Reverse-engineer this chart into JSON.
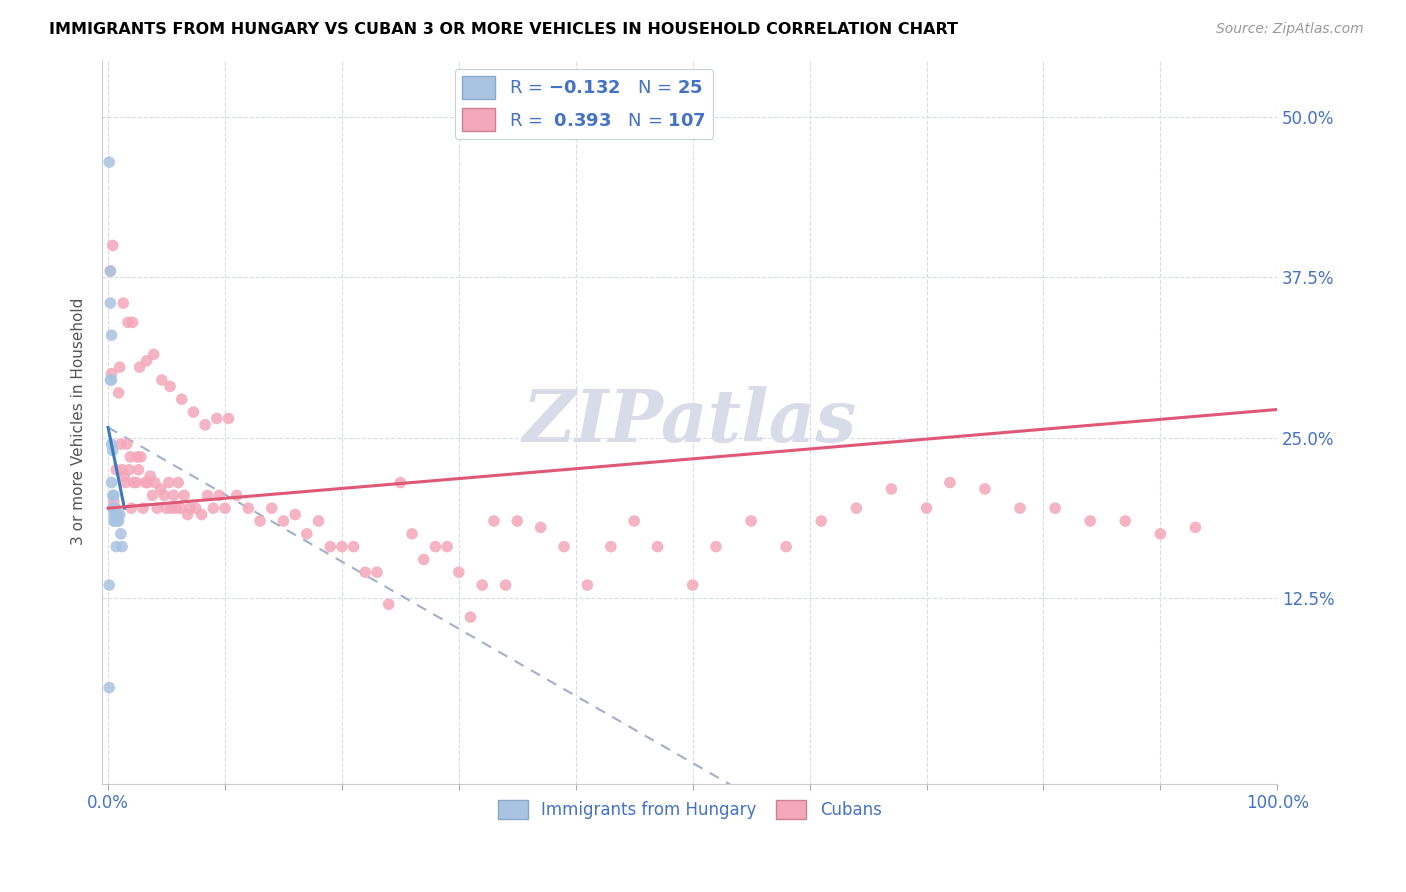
{
  "title": "IMMIGRANTS FROM HUNGARY VS CUBAN 3 OR MORE VEHICLES IN HOUSEHOLD CORRELATION CHART",
  "source": "Source: ZipAtlas.com",
  "ylabel": "3 or more Vehicles in Household",
  "ytick_labels": [
    "12.5%",
    "25.0%",
    "37.5%",
    "50.0%"
  ],
  "ytick_values": [
    0.125,
    0.25,
    0.375,
    0.5
  ],
  "xlim": [
    -0.005,
    1.0
  ],
  "ylim": [
    -0.02,
    0.545
  ],
  "plot_ylim": [
    0.0,
    0.545
  ],
  "hungary_R": -0.132,
  "hungary_N": 25,
  "cuban_R": 0.393,
  "cuban_N": 107,
  "hungary_color": "#a8c4e0",
  "cuban_color": "#f4a7b9",
  "hungary_line_color": "#3a7abf",
  "cuban_line_color": "#e05878",
  "dashed_line_color": "#a0b0cc",
  "watermark_color": "#d8dce8",
  "hungary_line_x0": 0.0,
  "hungary_line_y0": 0.258,
  "hungary_line_x1": 0.014,
  "hungary_line_y1": 0.195,
  "cuban_line_x0": 0.0,
  "cuban_line_y0": 0.195,
  "cuban_line_x1": 1.0,
  "cuban_line_y1": 0.272,
  "dash_line_x0": 0.0,
  "dash_line_y0": 0.258,
  "dash_line_x1": 0.55,
  "dash_line_y1": -0.03,
  "hungary_pts_x": [
    0.001,
    0.001,
    0.002,
    0.002,
    0.002,
    0.003,
    0.003,
    0.003,
    0.003,
    0.004,
    0.004,
    0.004,
    0.005,
    0.005,
    0.005,
    0.006,
    0.006,
    0.007,
    0.007,
    0.008,
    0.009,
    0.01,
    0.011,
    0.012,
    0.001
  ],
  "hungary_pts_y": [
    0.465,
    0.135,
    0.38,
    0.355,
    0.295,
    0.33,
    0.295,
    0.245,
    0.215,
    0.24,
    0.205,
    0.195,
    0.205,
    0.19,
    0.185,
    0.195,
    0.185,
    0.19,
    0.165,
    0.185,
    0.185,
    0.19,
    0.175,
    0.165,
    0.055
  ],
  "cuban_pts_x": [
    0.005,
    0.006,
    0.008,
    0.009,
    0.01,
    0.011,
    0.012,
    0.014,
    0.015,
    0.016,
    0.018,
    0.019,
    0.02,
    0.022,
    0.024,
    0.025,
    0.026,
    0.028,
    0.03,
    0.032,
    0.034,
    0.036,
    0.038,
    0.04,
    0.042,
    0.045,
    0.048,
    0.05,
    0.052,
    0.054,
    0.056,
    0.058,
    0.06,
    0.062,
    0.065,
    0.068,
    0.07,
    0.075,
    0.08,
    0.085,
    0.09,
    0.095,
    0.1,
    0.11,
    0.12,
    0.13,
    0.14,
    0.15,
    0.16,
    0.17,
    0.18,
    0.19,
    0.2,
    0.21,
    0.22,
    0.23,
    0.24,
    0.25,
    0.26,
    0.27,
    0.28,
    0.29,
    0.3,
    0.31,
    0.32,
    0.33,
    0.34,
    0.35,
    0.37,
    0.39,
    0.41,
    0.43,
    0.45,
    0.47,
    0.5,
    0.52,
    0.55,
    0.58,
    0.61,
    0.64,
    0.67,
    0.7,
    0.72,
    0.75,
    0.78,
    0.81,
    0.84,
    0.87,
    0.9,
    0.93,
    0.002,
    0.003,
    0.004,
    0.007,
    0.013,
    0.017,
    0.021,
    0.027,
    0.033,
    0.039,
    0.046,
    0.053,
    0.063,
    0.073,
    0.083,
    0.093,
    0.103
  ],
  "cuban_pts_y": [
    0.2,
    0.195,
    0.19,
    0.285,
    0.305,
    0.245,
    0.225,
    0.22,
    0.215,
    0.245,
    0.225,
    0.235,
    0.195,
    0.215,
    0.215,
    0.235,
    0.225,
    0.235,
    0.195,
    0.215,
    0.215,
    0.22,
    0.205,
    0.215,
    0.195,
    0.21,
    0.205,
    0.195,
    0.215,
    0.195,
    0.205,
    0.195,
    0.215,
    0.195,
    0.205,
    0.19,
    0.195,
    0.195,
    0.19,
    0.205,
    0.195,
    0.205,
    0.195,
    0.205,
    0.195,
    0.185,
    0.195,
    0.185,
    0.19,
    0.175,
    0.185,
    0.165,
    0.165,
    0.165,
    0.145,
    0.145,
    0.12,
    0.215,
    0.175,
    0.155,
    0.165,
    0.165,
    0.145,
    0.11,
    0.135,
    0.185,
    0.135,
    0.185,
    0.18,
    0.165,
    0.135,
    0.165,
    0.185,
    0.165,
    0.135,
    0.165,
    0.185,
    0.165,
    0.185,
    0.195,
    0.21,
    0.195,
    0.215,
    0.21,
    0.195,
    0.195,
    0.185,
    0.185,
    0.175,
    0.18,
    0.38,
    0.3,
    0.4,
    0.225,
    0.355,
    0.34,
    0.34,
    0.305,
    0.31,
    0.315,
    0.295,
    0.29,
    0.28,
    0.27,
    0.26,
    0.265,
    0.265
  ]
}
